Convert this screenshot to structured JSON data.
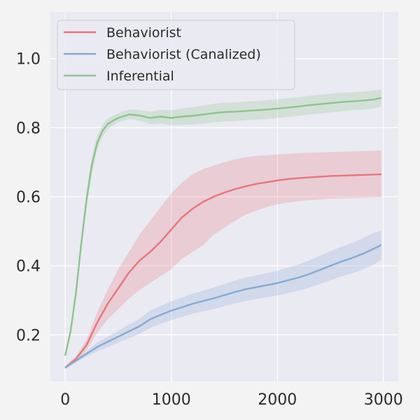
{
  "chart_data": {
    "type": "line",
    "xlim": [
      -140,
      3140
    ],
    "ylim": [
      0.065,
      1.135
    ],
    "xticks": [
      0,
      1000,
      2000,
      3000
    ],
    "xtick_labels": [
      "0",
      "1000",
      "2000",
      "3000"
    ],
    "yticks": [
      0.2,
      0.4,
      0.6,
      0.8,
      1.0
    ],
    "ytick_labels": [
      "0.2",
      "0.4",
      "0.6",
      "0.8",
      "1.0"
    ],
    "grid": true,
    "legend_position": "top-left",
    "series": [
      {
        "name": "Behaviorist",
        "color": "#e8757a",
        "x": [
          0,
          100,
          200,
          300,
          400,
          500,
          600,
          700,
          800,
          900,
          1000,
          1100,
          1200,
          1300,
          1400,
          1500,
          1600,
          1700,
          1800,
          1900,
          2000,
          2100,
          2200,
          2300,
          2400,
          2500,
          2600,
          2700,
          2800,
          2900,
          2980
        ],
        "y": [
          0.105,
          0.13,
          0.17,
          0.235,
          0.29,
          0.335,
          0.38,
          0.415,
          0.44,
          0.47,
          0.505,
          0.54,
          0.565,
          0.585,
          0.6,
          0.612,
          0.622,
          0.63,
          0.637,
          0.642,
          0.647,
          0.651,
          0.654,
          0.656,
          0.658,
          0.66,
          0.661,
          0.662,
          0.663,
          0.664,
          0.665
        ],
        "lower": [
          0.1,
          0.125,
          0.155,
          0.205,
          0.245,
          0.275,
          0.305,
          0.33,
          0.35,
          0.37,
          0.39,
          0.42,
          0.44,
          0.46,
          0.49,
          0.51,
          0.53,
          0.548,
          0.56,
          0.57,
          0.578,
          0.583,
          0.587,
          0.59,
          0.592,
          0.594,
          0.595,
          0.596,
          0.597,
          0.598,
          0.598
        ],
        "upper": [
          0.11,
          0.138,
          0.185,
          0.265,
          0.33,
          0.39,
          0.44,
          0.49,
          0.53,
          0.57,
          0.61,
          0.64,
          0.665,
          0.68,
          0.69,
          0.7,
          0.708,
          0.714,
          0.718,
          0.72,
          0.722,
          0.724,
          0.726,
          0.727,
          0.728,
          0.729,
          0.73,
          0.731,
          0.732,
          0.733,
          0.734
        ]
      },
      {
        "name": "Behaviorist (Canalized)",
        "color": "#86a9d2",
        "x": [
          0,
          100,
          200,
          300,
          400,
          500,
          600,
          700,
          800,
          900,
          1000,
          1100,
          1200,
          1300,
          1400,
          1500,
          1600,
          1700,
          1800,
          1900,
          2000,
          2100,
          2200,
          2300,
          2400,
          2500,
          2600,
          2700,
          2800,
          2900,
          2980
        ],
        "y": [
          0.105,
          0.125,
          0.145,
          0.165,
          0.18,
          0.195,
          0.21,
          0.225,
          0.245,
          0.258,
          0.27,
          0.28,
          0.29,
          0.298,
          0.306,
          0.315,
          0.324,
          0.332,
          0.338,
          0.344,
          0.35,
          0.358,
          0.366,
          0.376,
          0.388,
          0.4,
          0.412,
          0.422,
          0.434,
          0.448,
          0.46
        ],
        "lower": [
          0.102,
          0.12,
          0.137,
          0.152,
          0.165,
          0.178,
          0.19,
          0.203,
          0.22,
          0.232,
          0.243,
          0.252,
          0.261,
          0.268,
          0.275,
          0.283,
          0.291,
          0.298,
          0.304,
          0.309,
          0.314,
          0.321,
          0.328,
          0.337,
          0.347,
          0.358,
          0.369,
          0.378,
          0.389,
          0.402,
          0.418
        ],
        "upper": [
          0.108,
          0.13,
          0.153,
          0.178,
          0.195,
          0.212,
          0.23,
          0.247,
          0.27,
          0.284,
          0.297,
          0.308,
          0.319,
          0.328,
          0.337,
          0.347,
          0.357,
          0.366,
          0.372,
          0.379,
          0.386,
          0.395,
          0.404,
          0.415,
          0.429,
          0.442,
          0.455,
          0.466,
          0.479,
          0.494,
          0.502
        ]
      },
      {
        "name": "Inferential",
        "color": "#8dc48d",
        "x": [
          0,
          50,
          100,
          150,
          200,
          250,
          300,
          350,
          400,
          450,
          500,
          600,
          700,
          800,
          900,
          1000,
          1100,
          1200,
          1300,
          1400,
          1500,
          1600,
          1700,
          1800,
          1900,
          2000,
          2100,
          2200,
          2300,
          2400,
          2500,
          2600,
          2700,
          2800,
          2900,
          2980
        ],
        "y": [
          0.14,
          0.21,
          0.32,
          0.46,
          0.59,
          0.69,
          0.755,
          0.79,
          0.81,
          0.82,
          0.828,
          0.838,
          0.835,
          0.828,
          0.832,
          0.828,
          0.832,
          0.834,
          0.838,
          0.842,
          0.845,
          0.846,
          0.848,
          0.85,
          0.852,
          0.855,
          0.858,
          0.861,
          0.865,
          0.868,
          0.871,
          0.874,
          0.876,
          0.878,
          0.881,
          0.886
        ],
        "lower": [
          0.132,
          0.2,
          0.305,
          0.44,
          0.565,
          0.665,
          0.735,
          0.773,
          0.795,
          0.806,
          0.815,
          0.825,
          0.82,
          0.81,
          0.812,
          0.806,
          0.808,
          0.809,
          0.812,
          0.815,
          0.818,
          0.819,
          0.821,
          0.823,
          0.825,
          0.828,
          0.831,
          0.834,
          0.838,
          0.841,
          0.844,
          0.847,
          0.85,
          0.852,
          0.855,
          0.862
        ],
        "upper": [
          0.148,
          0.22,
          0.335,
          0.48,
          0.615,
          0.715,
          0.775,
          0.807,
          0.826,
          0.835,
          0.842,
          0.852,
          0.851,
          0.846,
          0.852,
          0.85,
          0.856,
          0.859,
          0.864,
          0.869,
          0.872,
          0.873,
          0.875,
          0.877,
          0.879,
          0.882,
          0.885,
          0.888,
          0.892,
          0.895,
          0.898,
          0.901,
          0.902,
          0.904,
          0.907,
          0.91
        ]
      }
    ]
  }
}
